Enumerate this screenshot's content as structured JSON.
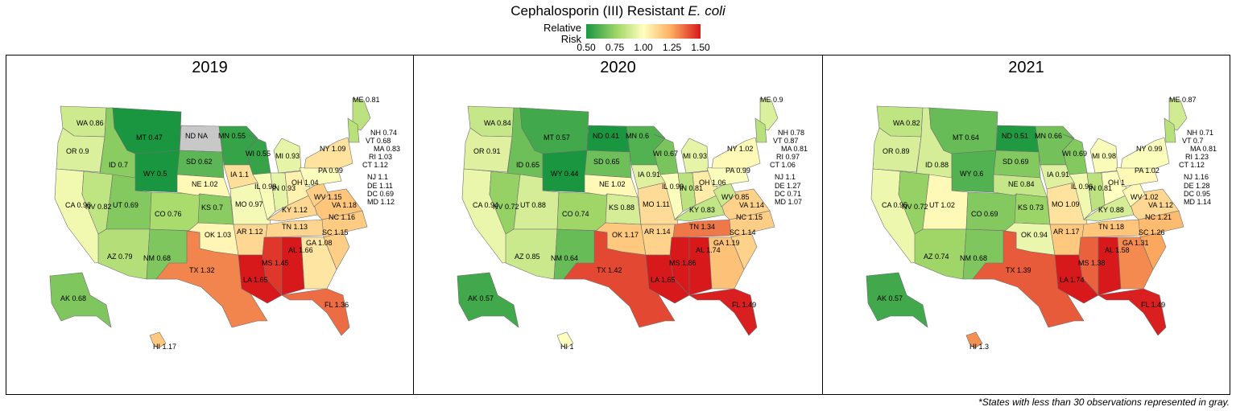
{
  "title_prefix": "Cephalosporin (III) Resistant ",
  "title_italic": "E. coli",
  "legend": {
    "label": "Relative\nRisk",
    "ticks": [
      "0.50",
      "0.75",
      "1.00",
      "1.25",
      "1.50"
    ],
    "tick_values": [
      0.5,
      0.75,
      1.0,
      1.25,
      1.5
    ],
    "colors": [
      "#1a9641",
      "#a6d96a",
      "#ffffbf",
      "#fdae61",
      "#d7191c"
    ],
    "na_color": "#c8c8c8"
  },
  "footnote": "*States with less than 30 observations represented in gray.",
  "panels": [
    {
      "year": "2019",
      "states": [
        {
          "code": "WA",
          "label": "WA 0.86",
          "rr": 0.86
        },
        {
          "code": "OR",
          "label": "OR 0.9",
          "rr": 0.9
        },
        {
          "code": "CA",
          "label": "CA 0.96",
          "rr": 0.96
        },
        {
          "code": "ID",
          "label": "ID 0.7",
          "rr": 0.7
        },
        {
          "code": "NV",
          "label": "NV 0.82",
          "rr": 0.82
        },
        {
          "code": "MT",
          "label": "MT 0.47",
          "rr": 0.47
        },
        {
          "code": "WY",
          "label": "WY 0.5",
          "rr": 0.5
        },
        {
          "code": "UT",
          "label": "UT 0.69",
          "rr": 0.69
        },
        {
          "code": "AZ",
          "label": "AZ 0.79",
          "rr": 0.79
        },
        {
          "code": "CO",
          "label": "CO 0.76",
          "rr": 0.76
        },
        {
          "code": "NM",
          "label": "NM 0.68",
          "rr": 0.68
        },
        {
          "code": "ND",
          "label": "ND NA",
          "rr": null
        },
        {
          "code": "SD",
          "label": "SD 0.62",
          "rr": 0.62
        },
        {
          "code": "NE",
          "label": "NE 1.02",
          "rr": 1.02
        },
        {
          "code": "KS",
          "label": "KS 0.7",
          "rr": 0.7
        },
        {
          "code": "OK",
          "label": "OK 1.03",
          "rr": 1.03
        },
        {
          "code": "TX",
          "label": "TX 1.32",
          "rr": 1.32
        },
        {
          "code": "MN",
          "label": "MN 0.55",
          "rr": 0.55
        },
        {
          "code": "IA",
          "label": "IA 1.1",
          "rr": 1.1
        },
        {
          "code": "MO",
          "label": "MO 0.97",
          "rr": 0.97
        },
        {
          "code": "AR",
          "label": "AR 1.12",
          "rr": 1.12
        },
        {
          "code": "LA",
          "label": "LA 1.65",
          "rr": 1.65
        },
        {
          "code": "WI",
          "label": "WI 0.55",
          "rr": 0.55
        },
        {
          "code": "IL",
          "label": "IL 0.98",
          "rr": 0.98
        },
        {
          "code": "MI",
          "label": "MI 0.93",
          "rr": 0.93
        },
        {
          "code": "IN",
          "label": "IN 0.93",
          "rr": 0.93
        },
        {
          "code": "OH",
          "label": "OH 1.04",
          "rr": 1.04
        },
        {
          "code": "KY",
          "label": "KY 1.12",
          "rr": 1.12
        },
        {
          "code": "TN",
          "label": "TN 1.13",
          "rr": 1.13
        },
        {
          "code": "MS",
          "label": "MS 1.45",
          "rr": 1.45
        },
        {
          "code": "AL",
          "label": "AL 1.66",
          "rr": 1.66
        },
        {
          "code": "GA",
          "label": "GA 1.08",
          "rr": 1.08
        },
        {
          "code": "FL",
          "label": "FL 1.36",
          "rr": 1.36
        },
        {
          "code": "SC",
          "label": "SC 1.15",
          "rr": 1.15
        },
        {
          "code": "NC",
          "label": "NC 1.16",
          "rr": 1.16
        },
        {
          "code": "VA",
          "label": "VA 1.18",
          "rr": 1.18
        },
        {
          "code": "WV",
          "label": "WV 1.15",
          "rr": 1.15
        },
        {
          "code": "PA",
          "label": "PA 0.99",
          "rr": 0.99
        },
        {
          "code": "NY",
          "label": "NY 1.09",
          "rr": 1.09
        },
        {
          "code": "ME",
          "label": "ME 0.81",
          "rr": 0.81
        },
        {
          "code": "AK",
          "label": "AK 0.68",
          "rr": 0.68
        },
        {
          "code": "HI",
          "label": "HI 1.17",
          "rr": 1.17
        }
      ],
      "northeast": [
        "NH 0.74",
        "VT 0.68",
        "MA 0.83",
        "RI 1.03",
        "CT 1.12",
        "NJ 1.1",
        "DE 1.11",
        "DC 0.69",
        "MD 1.12"
      ]
    },
    {
      "year": "2020",
      "states": [
        {
          "code": "WA",
          "label": "WA 0.84",
          "rr": 0.84
        },
        {
          "code": "OR",
          "label": "OR 0.91",
          "rr": 0.91
        },
        {
          "code": "CA",
          "label": "CA 0.94",
          "rr": 0.94
        },
        {
          "code": "ID",
          "label": "ID 0.65",
          "rr": 0.65
        },
        {
          "code": "NV",
          "label": "NV 0.72",
          "rr": 0.72
        },
        {
          "code": "MT",
          "label": "MT 0.57",
          "rr": 0.57
        },
        {
          "code": "WY",
          "label": "WY 0.44",
          "rr": 0.44
        },
        {
          "code": "UT",
          "label": "UT 0.88",
          "rr": 0.88
        },
        {
          "code": "AZ",
          "label": "AZ 0.85",
          "rr": 0.85
        },
        {
          "code": "CO",
          "label": "CO 0.74",
          "rr": 0.74
        },
        {
          "code": "NM",
          "label": "NM 0.64",
          "rr": 0.64
        },
        {
          "code": "ND",
          "label": "ND 0.41",
          "rr": 0.41
        },
        {
          "code": "SD",
          "label": "SD 0.65",
          "rr": 0.65
        },
        {
          "code": "NE",
          "label": "NE 1.02",
          "rr": 1.02
        },
        {
          "code": "KS",
          "label": "KS 0.88",
          "rr": 0.88
        },
        {
          "code": "OK",
          "label": "OK 1.17",
          "rr": 1.17
        },
        {
          "code": "TX",
          "label": "TX 1.42",
          "rr": 1.42
        },
        {
          "code": "MN",
          "label": "MN 0.6",
          "rr": 0.6
        },
        {
          "code": "IA",
          "label": "IA 0.91",
          "rr": 0.91
        },
        {
          "code": "MO",
          "label": "MO 1.11",
          "rr": 1.11
        },
        {
          "code": "AR",
          "label": "AR 1.14",
          "rr": 1.14
        },
        {
          "code": "LA",
          "label": "LA 1.65",
          "rr": 1.65
        },
        {
          "code": "WI",
          "label": "WI 0.67",
          "rr": 0.67
        },
        {
          "code": "IL",
          "label": "IL 0.99",
          "rr": 0.99
        },
        {
          "code": "MI",
          "label": "MI 0.93",
          "rr": 0.93
        },
        {
          "code": "IN",
          "label": "IN 0.81",
          "rr": 0.81
        },
        {
          "code": "OH",
          "label": "OH 1.06",
          "rr": 1.06
        },
        {
          "code": "KY",
          "label": "KY 0.83",
          "rr": 0.83
        },
        {
          "code": "TN",
          "label": "TN 1.34",
          "rr": 1.34
        },
        {
          "code": "MS",
          "label": "MS 1.86",
          "rr": 1.86
        },
        {
          "code": "AL",
          "label": "AL 1.74",
          "rr": 1.74
        },
        {
          "code": "GA",
          "label": "GA 1.19",
          "rr": 1.19
        },
        {
          "code": "FL",
          "label": "FL 1.49",
          "rr": 1.49
        },
        {
          "code": "SC",
          "label": "SC 1.14",
          "rr": 1.14
        },
        {
          "code": "NC",
          "label": "NC 1.15",
          "rr": 1.15
        },
        {
          "code": "VA",
          "label": "VA 1.14",
          "rr": 1.14
        },
        {
          "code": "WV",
          "label": "WV 0.85",
          "rr": 0.85
        },
        {
          "code": "PA",
          "label": "PA 0.99",
          "rr": 0.99
        },
        {
          "code": "NY",
          "label": "NY 1.02",
          "rr": 1.02
        },
        {
          "code": "ME",
          "label": "ME 0.9",
          "rr": 0.9
        },
        {
          "code": "AK",
          "label": "AK 0.57",
          "rr": 0.57
        },
        {
          "code": "HI",
          "label": "HI 1",
          "rr": 1.0
        }
      ],
      "northeast": [
        "NH 0.78",
        "VT 0.87",
        "MA 0.81",
        "RI 0.97",
        "CT 1.06",
        "NJ 1.1",
        "DE 1.27",
        "DC 0.71",
        "MD 1.07"
      ]
    },
    {
      "year": "2021",
      "states": [
        {
          "code": "WA",
          "label": "WA 0.82",
          "rr": 0.82
        },
        {
          "code": "OR",
          "label": "OR 0.89",
          "rr": 0.89
        },
        {
          "code": "CA",
          "label": "CA 0.95",
          "rr": 0.95
        },
        {
          "code": "ID",
          "label": "ID 0.88",
          "rr": 0.88
        },
        {
          "code": "NV",
          "label": "NV 0.72",
          "rr": 0.72
        },
        {
          "code": "MT",
          "label": "MT 0.64",
          "rr": 0.64
        },
        {
          "code": "WY",
          "label": "WY 0.6",
          "rr": 0.6
        },
        {
          "code": "UT",
          "label": "UT 1.02",
          "rr": 1.02
        },
        {
          "code": "AZ",
          "label": "AZ 0.74",
          "rr": 0.74
        },
        {
          "code": "CO",
          "label": "CO 0.69",
          "rr": 0.69
        },
        {
          "code": "NM",
          "label": "NM 0.68",
          "rr": 0.68
        },
        {
          "code": "ND",
          "label": "ND 0.51",
          "rr": 0.51
        },
        {
          "code": "SD",
          "label": "SD 0.69",
          "rr": 0.69
        },
        {
          "code": "NE",
          "label": "NE 0.84",
          "rr": 0.84
        },
        {
          "code": "KS",
          "label": "KS 0.73",
          "rr": 0.73
        },
        {
          "code": "OK",
          "label": "OK 0.94",
          "rr": 0.94
        },
        {
          "code": "TX",
          "label": "TX 1.39",
          "rr": 1.39
        },
        {
          "code": "MN",
          "label": "MN 0.66",
          "rr": 0.66
        },
        {
          "code": "IA",
          "label": "IA 0.91",
          "rr": 0.91
        },
        {
          "code": "MO",
          "label": "MO 1.09",
          "rr": 1.09
        },
        {
          "code": "AR",
          "label": "AR 1.17",
          "rr": 1.17
        },
        {
          "code": "LA",
          "label": "LA 1.74",
          "rr": 1.74
        },
        {
          "code": "WI",
          "label": "WI 0.69",
          "rr": 0.69
        },
        {
          "code": "IL",
          "label": "IL 0.96",
          "rr": 0.96
        },
        {
          "code": "MI",
          "label": "MI 0.98",
          "rr": 0.98
        },
        {
          "code": "IN",
          "label": "IN 0.81",
          "rr": 0.81
        },
        {
          "code": "OH",
          "label": "OH 1",
          "rr": 1.0
        },
        {
          "code": "KY",
          "label": "KY 0.88",
          "rr": 0.88
        },
        {
          "code": "TN",
          "label": "TN 1.18",
          "rr": 1.18
        },
        {
          "code": "MS",
          "label": "MS 1.38",
          "rr": 1.38
        },
        {
          "code": "AL",
          "label": "AL 1.58",
          "rr": 1.58
        },
        {
          "code": "GA",
          "label": "GA 1.31",
          "rr": 1.31
        },
        {
          "code": "FL",
          "label": "FL 1.49",
          "rr": 1.49
        },
        {
          "code": "SC",
          "label": "SC 1.26",
          "rr": 1.26
        },
        {
          "code": "NC",
          "label": "NC 1.21",
          "rr": 1.21
        },
        {
          "code": "VA",
          "label": "VA 1.12",
          "rr": 1.12
        },
        {
          "code": "WV",
          "label": "WV 1.02",
          "rr": 1.02
        },
        {
          "code": "PA",
          "label": "PA 1.02",
          "rr": 1.02
        },
        {
          "code": "NY",
          "label": "NY 0.99",
          "rr": 0.99
        },
        {
          "code": "ME",
          "label": "ME 0.87",
          "rr": 0.87
        },
        {
          "code": "AK",
          "label": "AK 0.57",
          "rr": 0.57
        },
        {
          "code": "HI",
          "label": "HI 1.3",
          "rr": 1.3
        }
      ],
      "northeast": [
        "NH 0.71",
        "VT 0.7",
        "MA 0.81",
        "RI 1.23",
        "CT 1.12",
        "NJ 1.16",
        "DE 1.28",
        "DC 0.95",
        "MD 1.14"
      ]
    }
  ]
}
